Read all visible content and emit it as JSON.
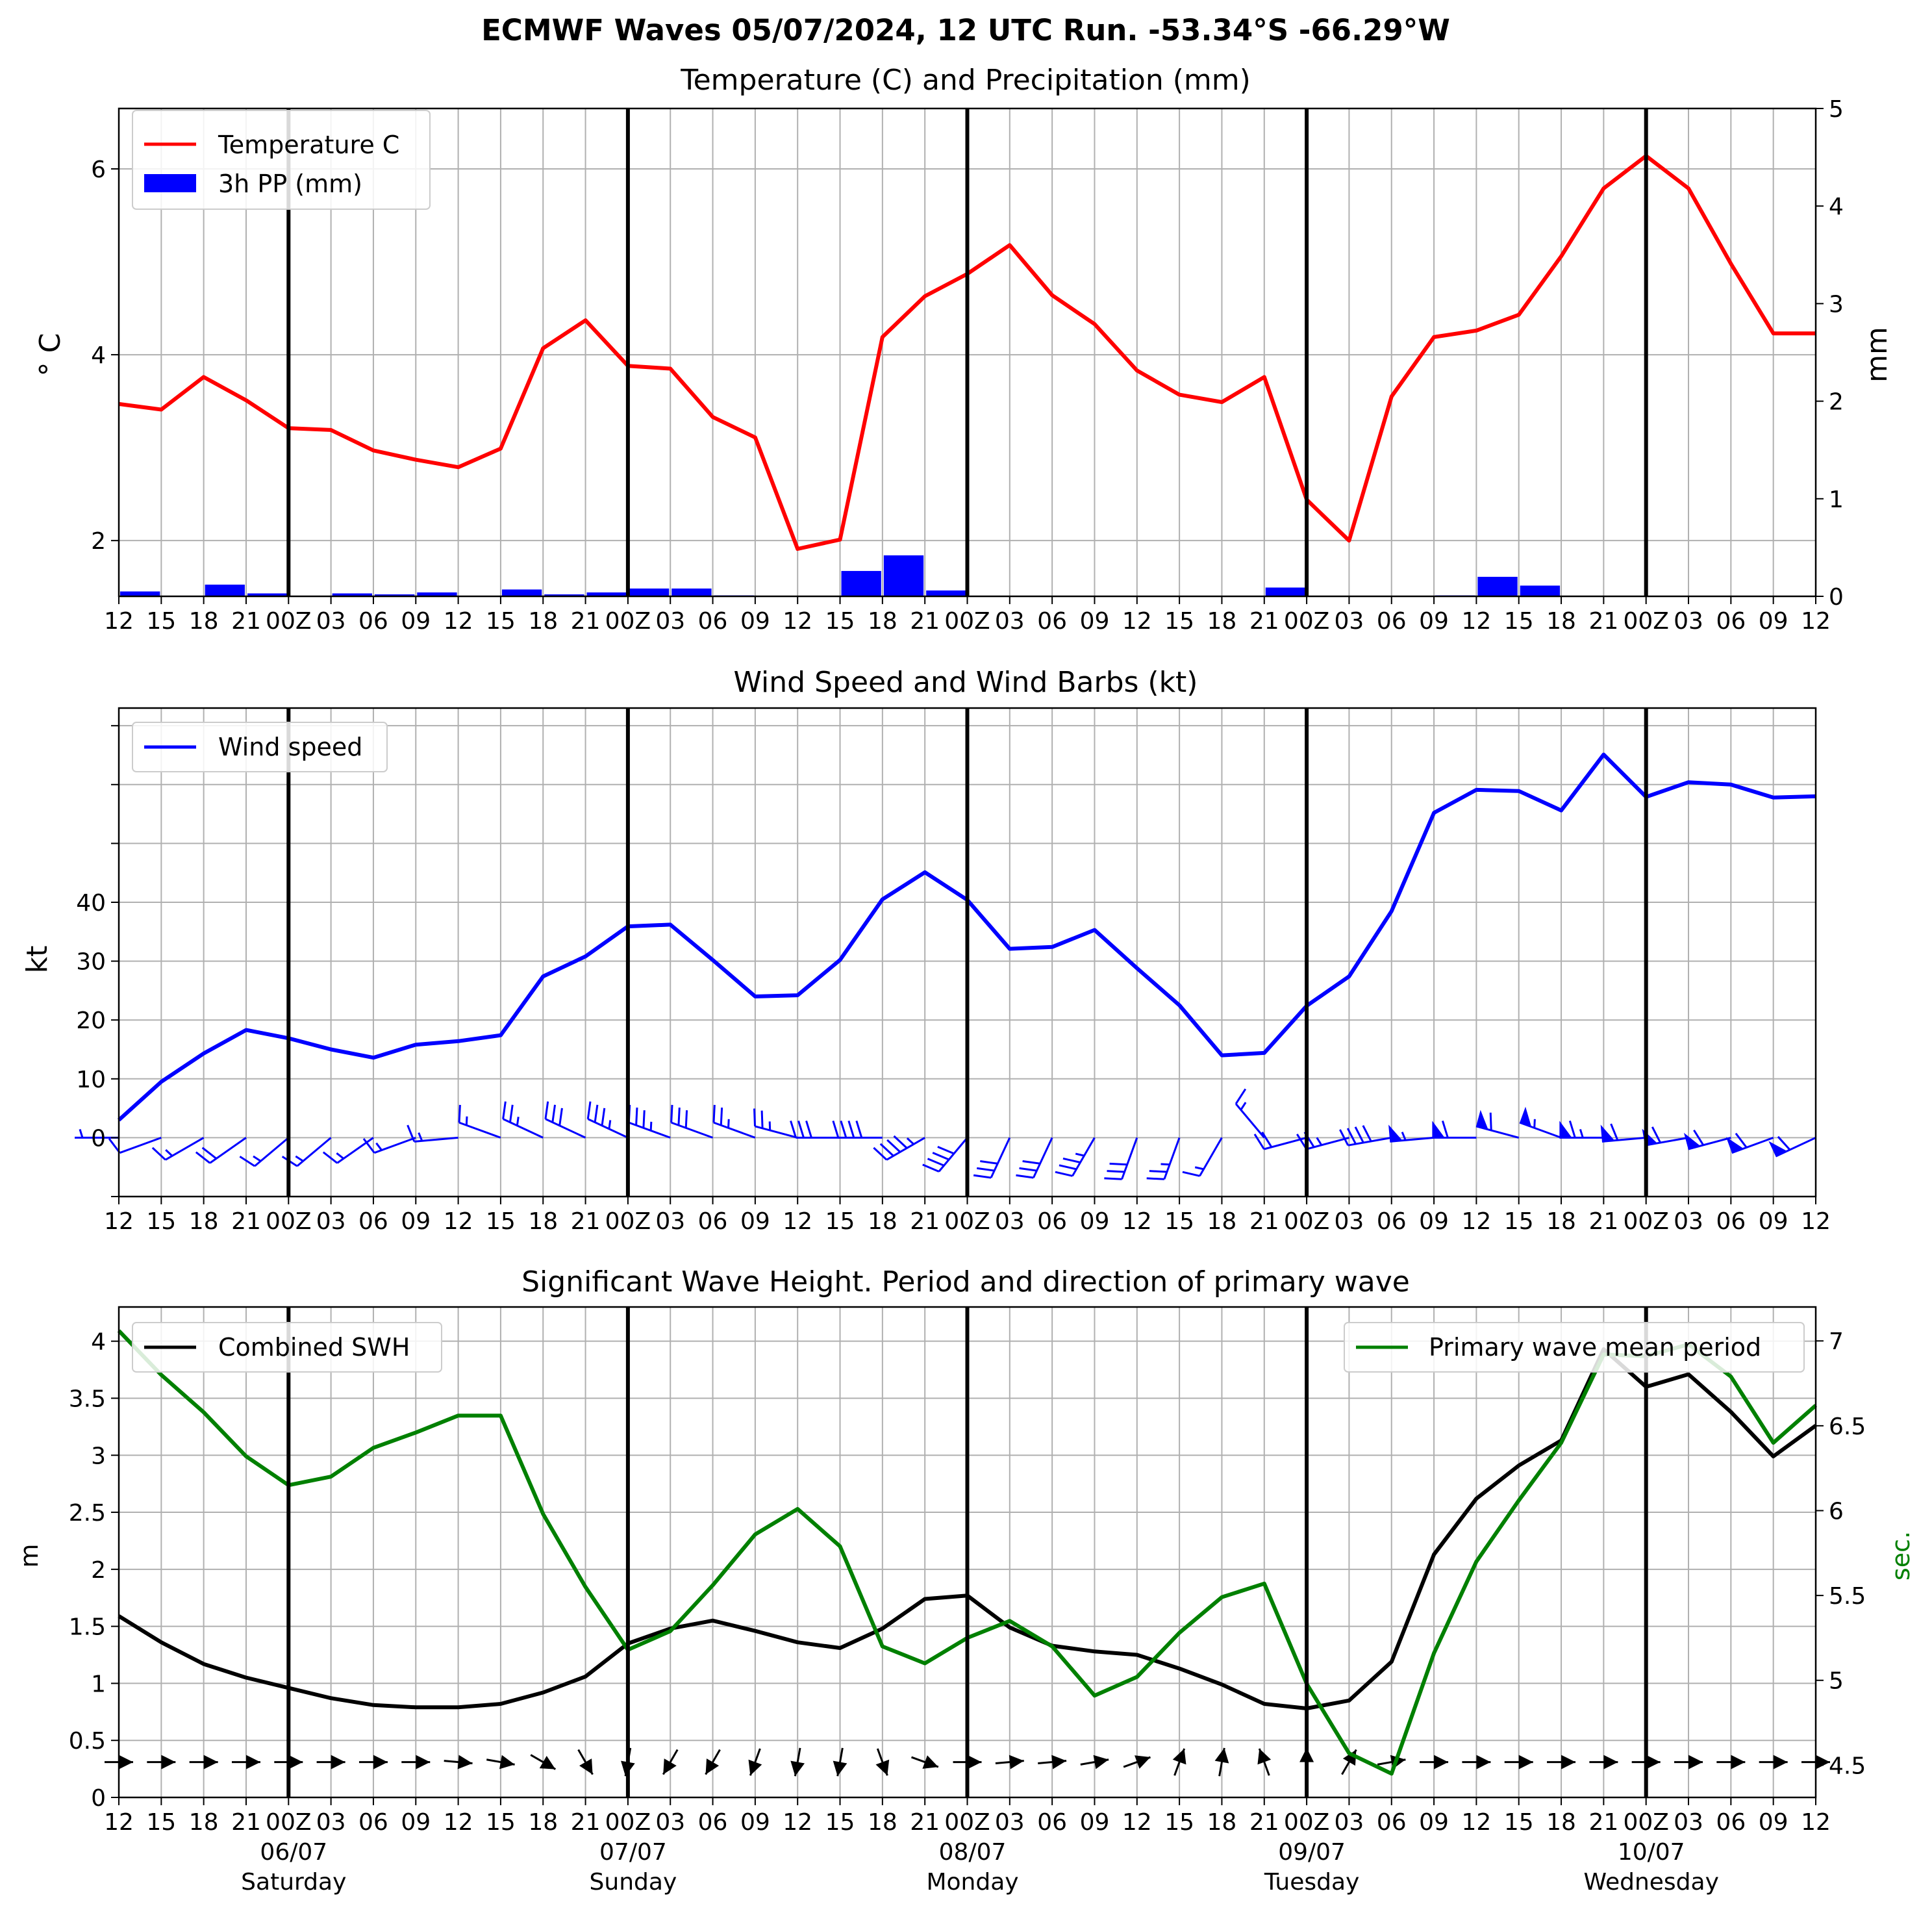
{
  "figure": {
    "suptitle": "ECMWF Waves 05/07/2024, 12 UTC Run. -53.34°S -66.29°W"
  },
  "time_axis": {
    "start": "2024-07-05 12:00 UTC",
    "step_hours": 3,
    "steps": 41,
    "tick_labels": [
      "12",
      "15",
      "18",
      "21",
      "00Z",
      "03",
      "06",
      "09",
      "12",
      "15",
      "18",
      "21",
      "00Z",
      "03",
      "06",
      "09",
      "12",
      "15",
      "18",
      "21",
      "00Z",
      "03",
      "06",
      "09",
      "12",
      "15",
      "18",
      "21",
      "00Z",
      "03",
      "06",
      "09",
      "12",
      "15",
      "18",
      "21",
      "00Z",
      "03",
      "06",
      "09",
      "12"
    ],
    "day_separators": [
      "06/07 00Z",
      "07/07 00Z",
      "08/07 00Z",
      "09/07 00Z",
      "10/07 00Z"
    ],
    "day_labels": [
      {
        "date": "06/07",
        "weekday": "Saturday"
      },
      {
        "date": "07/07",
        "weekday": "Sunday"
      },
      {
        "date": "08/07",
        "weekday": "Monday"
      },
      {
        "date": "09/07",
        "weekday": "Tuesday"
      },
      {
        "date": "10/07",
        "weekday": "Wednesday"
      }
    ]
  },
  "colors": {
    "temperature": "#ff0000",
    "precip": "#0000ff",
    "wind": "#0000ff",
    "swh": "#000000",
    "period": "#008000",
    "grid": "#b0b0b0"
  },
  "chart_data": [
    {
      "type": "line",
      "title": "Temperature (C) and Precipitation (mm)",
      "ylabel": "° C",
      "ylabel_right": "mm",
      "ylim": [
        1.4,
        6.65
      ],
      "ylim_right": [
        0,
        5
      ],
      "yticks": [
        2,
        4,
        6
      ],
      "yticks_right": [
        0,
        1,
        2,
        3,
        4,
        5
      ],
      "grid": true,
      "legend": "top-left",
      "series": [
        {
          "name": "Temperature C",
          "kind": "line",
          "values": [
            3.47,
            3.41,
            3.76,
            3.51,
            3.21,
            3.19,
            2.97,
            2.87,
            2.79,
            2.99,
            4.07,
            4.37,
            3.88,
            3.85,
            3.33,
            3.11,
            1.91,
            2.01,
            4.19,
            4.63,
            4.87,
            5.18,
            4.64,
            4.33,
            3.83,
            3.57,
            3.49,
            3.76,
            2.44,
            2.0,
            3.55,
            4.19,
            4.26,
            4.43,
            5.06,
            5.79,
            6.14,
            5.79,
            4.98,
            4.23,
            4.23
          ]
        },
        {
          "name": "3h PP (mm)",
          "kind": "bar",
          "axis": "right",
          "values": [
            0.05,
            0,
            0.12,
            0.03,
            0,
            0.03,
            0.02,
            0.04,
            0,
            0.07,
            0.02,
            0.04,
            0.08,
            0.08,
            0.01,
            0,
            0,
            0.26,
            0.42,
            0.06,
            0,
            0,
            0,
            0,
            0,
            0,
            0,
            0.09,
            0,
            0,
            0,
            0.01,
            0.2,
            0.11,
            0,
            0,
            0,
            0,
            0,
            0
          ]
        }
      ]
    },
    {
      "type": "line",
      "title": "Wind Speed and Wind Barbs (kt)",
      "ylabel": "kt",
      "ylim": [
        -10,
        73
      ],
      "yticks": [
        0,
        10,
        20,
        30,
        40
      ],
      "grid": true,
      "legend": "top-left",
      "series": [
        {
          "name": "Wind speed",
          "values": [
            3,
            9.5,
            14.3,
            18.3,
            16.9,
            15,
            13.6,
            15.8,
            16.4,
            17.4,
            27.4,
            30.8,
            35.9,
            36.2,
            30.2,
            24,
            24.2,
            30.2,
            40.5,
            45.1,
            40.4,
            32.1,
            32.4,
            35.3,
            28.8,
            22.5,
            14,
            14.4,
            22.4,
            27.4,
            38.5,
            55.2,
            59.1,
            58.9,
            55.6,
            65.1,
            57.9,
            60.4,
            60,
            57.8,
            58
          ]
        }
      ],
      "barb_directions_deg": [
        270,
        250,
        240,
        235,
        230,
        230,
        235,
        250,
        265,
        290,
        295,
        295,
        295,
        290,
        290,
        290,
        285,
        270,
        270,
        240,
        220,
        205,
        205,
        210,
        200,
        200,
        210,
        320,
        255,
        255,
        260,
        265,
        270,
        285,
        290,
        270,
        265,
        260,
        255,
        250,
        245
      ]
    },
    {
      "type": "line",
      "title": "Significant Wave Height. Period and direction of primary wave",
      "ylabel": "m",
      "ylabel_right": "sec.",
      "ylim": [
        0,
        4.3
      ],
      "ylim_right": [
        4.31,
        7.2
      ],
      "yticks": [
        0.0,
        0.5,
        1.0,
        1.5,
        2.0,
        2.5,
        3.0,
        3.5,
        4.0
      ],
      "yticks_right": [
        4.5,
        5.0,
        5.5,
        6.0,
        6.5,
        7.0
      ],
      "grid": true,
      "legends": [
        "top-left",
        "top-right"
      ],
      "series": [
        {
          "name": "Combined SWH",
          "values": [
            1.59,
            1.36,
            1.17,
            1.05,
            0.96,
            0.87,
            0.81,
            0.79,
            0.79,
            0.82,
            0.92,
            1.06,
            1.35,
            1.48,
            1.55,
            1.46,
            1.36,
            1.31,
            1.48,
            1.74,
            1.77,
            1.49,
            1.33,
            1.28,
            1.25,
            1.13,
            0.99,
            0.82,
            0.78,
            0.85,
            1.19,
            2.13,
            2.62,
            2.91,
            3.13,
            3.93,
            3.6,
            3.71,
            3.38,
            2.99,
            3.26
          ]
        },
        {
          "name": "Primary wave mean period",
          "axis": "right",
          "values": [
            7.06,
            6.8,
            6.58,
            6.32,
            6.15,
            6.2,
            6.37,
            6.46,
            6.56,
            6.56,
            5.98,
            5.55,
            5.18,
            5.29,
            5.56,
            5.86,
            6.01,
            5.79,
            5.2,
            5.1,
            5.25,
            5.35,
            5.2,
            4.91,
            5.02,
            5.28,
            5.49,
            5.57,
            4.98,
            4.57,
            4.45,
            5.16,
            5.7,
            6.06,
            6.4,
            6.92,
            6.91,
            6.98,
            6.79,
            6.4,
            6.62
          ]
        }
      ],
      "arrow_directions_deg": [
        270,
        270,
        270,
        270,
        270,
        270,
        270,
        270,
        275,
        280,
        300,
        330,
        10,
        30,
        30,
        20,
        10,
        10,
        340,
        290,
        270,
        265,
        265,
        260,
        250,
        200,
        190,
        160,
        180,
        210,
        260,
        270,
        270,
        270,
        270,
        270,
        270,
        270,
        270,
        270,
        270
      ]
    }
  ]
}
